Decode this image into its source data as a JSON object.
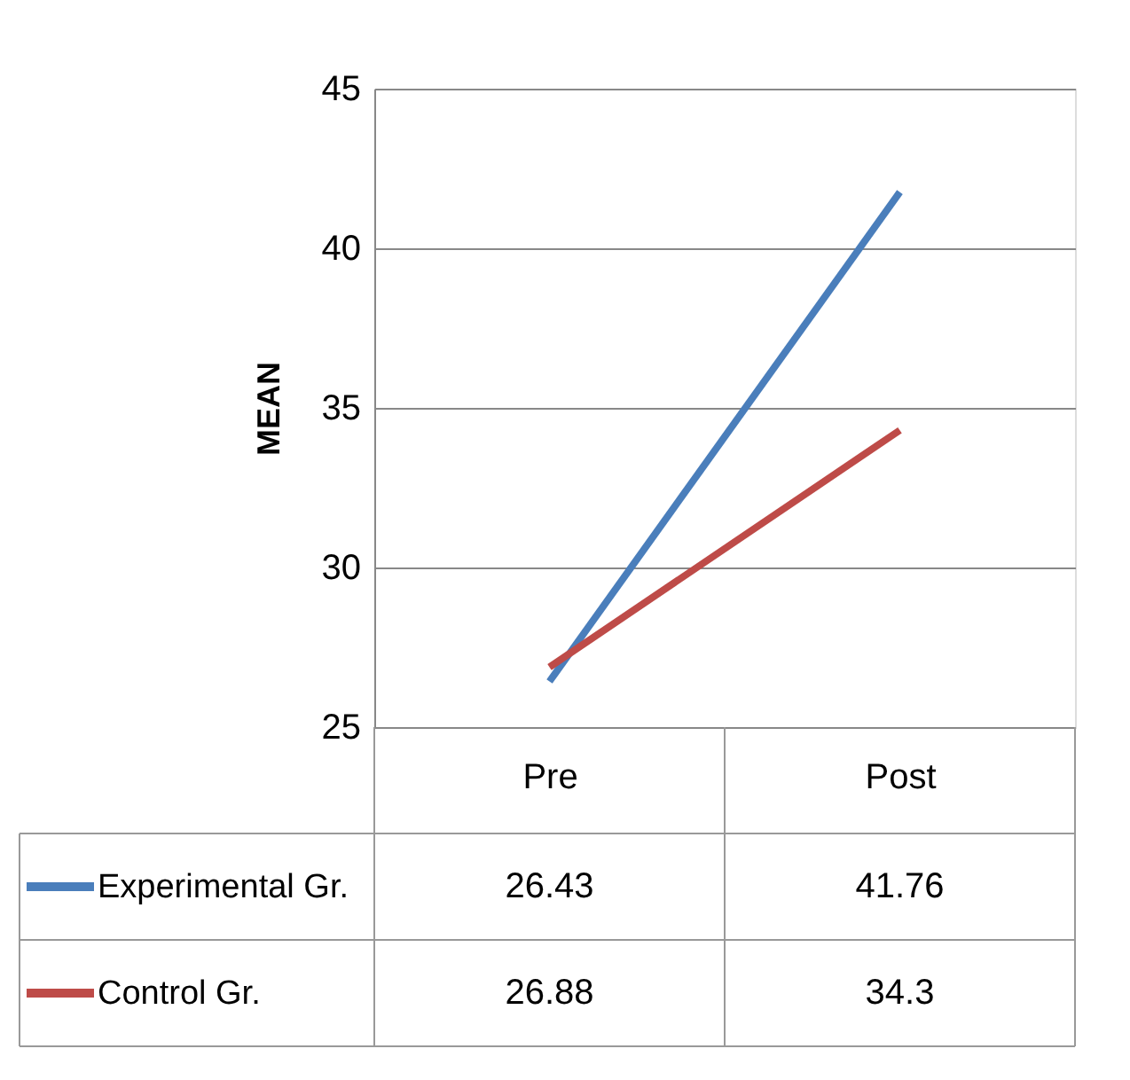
{
  "chart_data": {
    "type": "line",
    "ylabel": "MEAN",
    "categories": [
      "Pre",
      "Post"
    ],
    "series": [
      {
        "name": "Experimental Gr.",
        "color": "#4a7ebb",
        "values": [
          26.43,
          41.76
        ]
      },
      {
        "name": "Control Gr.",
        "color": "#be4b48",
        "values": [
          26.88,
          34.3
        ]
      }
    ],
    "ylim": [
      25,
      45
    ],
    "yticks": [
      25,
      30,
      35,
      40,
      45
    ],
    "grid": "y",
    "legend": "bottom",
    "data_labels": true,
    "marker": "none",
    "line_style": "solid"
  }
}
